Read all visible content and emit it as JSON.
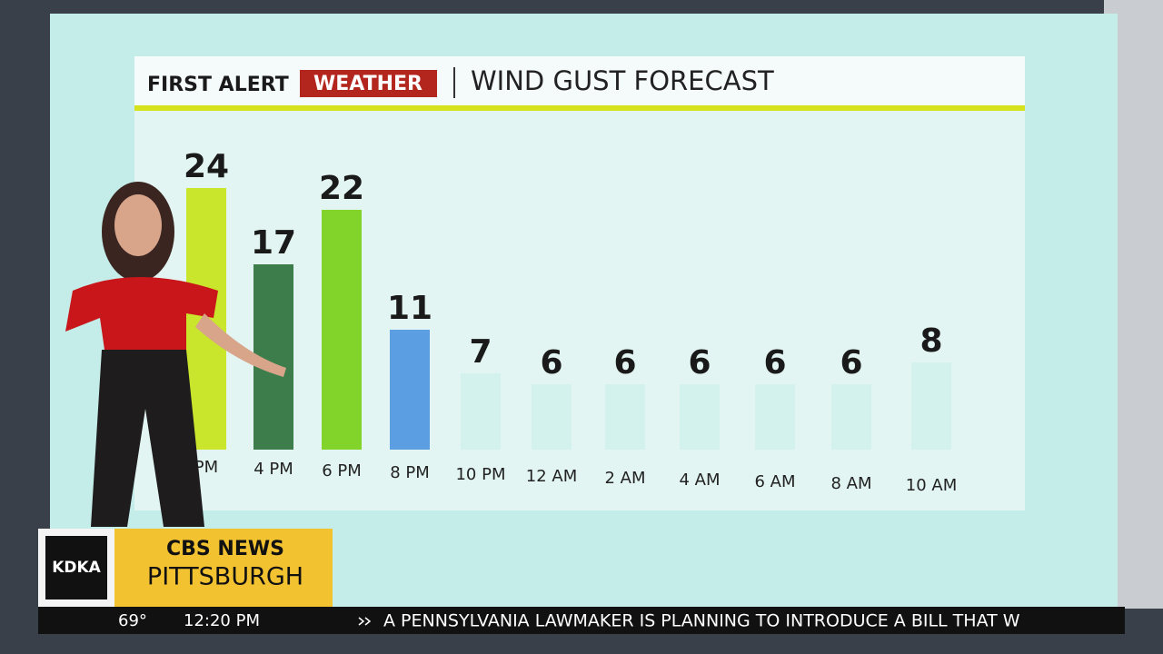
{
  "header": {
    "brand_first": "FIRST ALERT",
    "brand_weather": "WEATHER",
    "title": "WIND GUST FORECAST"
  },
  "chart_data": {
    "type": "bar",
    "categories": [
      "PM",
      "4 PM",
      "6 PM",
      "8 PM",
      "10 PM",
      "12 AM",
      "2 AM",
      "4 AM",
      "6 AM",
      "8 AM",
      "10 AM"
    ],
    "values": [
      24,
      17,
      22,
      11,
      7,
      6,
      6,
      6,
      6,
      6,
      8
    ],
    "colors": [
      "#c9e62c",
      "#3d7d4c",
      "#82d32a",
      "#5b9ee2",
      "#d3f2ee",
      "#d3f2ee",
      "#d3f2ee",
      "#d3f2ee",
      "#d3f2ee",
      "#d3f2ee",
      "#d3f2ee"
    ]
  },
  "lower_third": {
    "station": "KDKA",
    "network": "CBS NEWS",
    "city": "PITTSBURGH"
  },
  "ticker": {
    "temperature": "69°",
    "time": "12:20 PM",
    "headline": "A PENNSYLVANIA LAWMAKER IS PLANNING TO INTRODUCE A BILL THAT W"
  }
}
